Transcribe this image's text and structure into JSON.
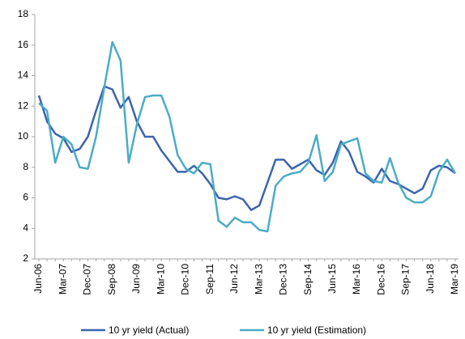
{
  "chart_data": {
    "type": "line",
    "categories": [
      "Jun-06",
      null,
      null,
      "Mar-07",
      null,
      null,
      "Dec-07",
      null,
      null,
      "Sep-08",
      null,
      null,
      "Jun-09",
      null,
      null,
      "Mar-10",
      null,
      null,
      "Dec-10",
      null,
      null,
      "Sep-11",
      null,
      null,
      "Jun-12",
      null,
      null,
      "Mar-13",
      null,
      null,
      "Dec-13",
      null,
      null,
      "Sep-14",
      null,
      null,
      "Jun-15",
      null,
      null,
      "Mar-16",
      null,
      null,
      "Dec-16",
      null,
      null,
      "Sep-17",
      null,
      null,
      "Jun-18",
      null,
      null,
      "Mar-19"
    ],
    "series": [
      {
        "name": "10 yr yield (Actual)",
        "color": "#3b64ad",
        "values": [
          12.7,
          11.0,
          10.2,
          9.9,
          9.0,
          9.2,
          10.0,
          11.7,
          13.3,
          13.1,
          11.9,
          12.6,
          11.0,
          10.0,
          10.0,
          9.1,
          8.4,
          7.7,
          7.7,
          8.1,
          7.6,
          6.9,
          6.0,
          5.9,
          6.1,
          5.9,
          5.2,
          5.5,
          7.0,
          8.5,
          8.5,
          7.9,
          8.2,
          8.5,
          7.8,
          7.5,
          8.3,
          9.7,
          9.0,
          7.7,
          7.4,
          7.0,
          7.9,
          7.1,
          6.9,
          6.6,
          6.3,
          6.6,
          7.8,
          8.1,
          8.0,
          7.6
        ]
      },
      {
        "name": "10 yr yield (Estimation)",
        "color": "#4bacc6",
        "values": [
          12.2,
          11.7,
          8.3,
          10.0,
          9.5,
          8.0,
          7.9,
          10.0,
          13.2,
          16.2,
          15.0,
          8.3,
          10.8,
          12.6,
          12.7,
          12.7,
          11.3,
          8.8,
          7.9,
          7.6,
          8.3,
          8.2,
          4.5,
          4.1,
          4.7,
          4.4,
          4.4,
          3.9,
          3.8,
          6.8,
          7.4,
          7.6,
          7.7,
          8.3,
          10.1,
          7.1,
          7.7,
          9.5,
          9.7,
          9.9,
          7.6,
          7.1,
          7.0,
          8.6,
          7.0,
          6.0,
          5.7,
          5.7,
          6.1,
          7.7,
          8.5,
          7.6
        ]
      }
    ],
    "ylim": [
      2,
      18
    ],
    "yticks": [
      2,
      4,
      6,
      8,
      10,
      12,
      14,
      16,
      18
    ],
    "grid": false,
    "legend": "bottom"
  }
}
